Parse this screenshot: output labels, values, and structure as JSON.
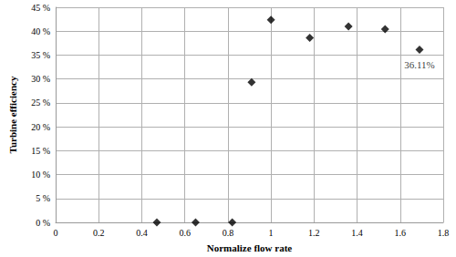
{
  "chart_data": {
    "type": "scatter",
    "x_label": "Normalize flow rate",
    "y_label": "Turbine efficiency",
    "x": [
      0.47,
      0.65,
      0.82,
      0.91,
      1.0,
      1.18,
      1.36,
      1.53,
      1.69
    ],
    "values": [
      0,
      0,
      0,
      29.3,
      42.4,
      38.6,
      41.0,
      40.4,
      36.11
    ],
    "color": "#000000",
    "marker": "diamond",
    "xlim": [
      0,
      1.8
    ],
    "xticks": [
      0,
      0.2,
      0.4,
      0.6,
      0.8,
      1,
      1.2,
      1.4,
      1.6,
      1.8
    ],
    "ylim": [
      0,
      45
    ],
    "yticks": [
      {
        "value": 0,
        "label": "0 %"
      },
      {
        "value": 5,
        "label": "5 %"
      },
      {
        "value": 10,
        "label": "10 %"
      },
      {
        "value": 15,
        "label": "15 %"
      },
      {
        "value": 20,
        "label": "20 %"
      },
      {
        "value": 25,
        "label": "25 %"
      },
      {
        "value": 30,
        "label": "30 %"
      },
      {
        "value": 35,
        "label": "35 %"
      },
      {
        "value": 40,
        "label": "40 %"
      },
      {
        "value": 45,
        "label": "45 %"
      }
    ],
    "annotations": [
      {
        "text": "36.11%",
        "x": 1.69,
        "y": 36.11
      }
    ],
    "grid": true
  }
}
